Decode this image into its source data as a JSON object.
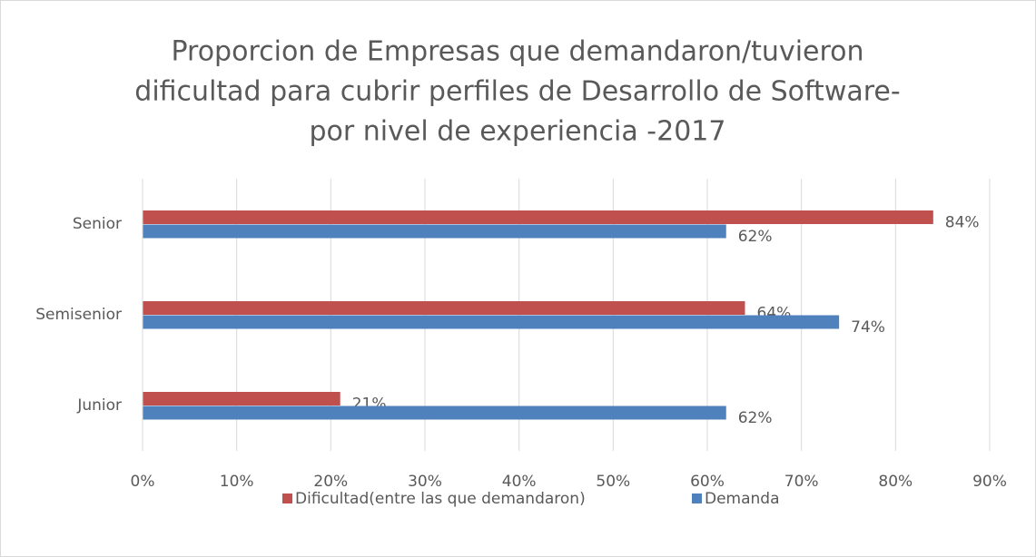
{
  "chart_data": {
    "type": "bar",
    "orientation": "horizontal",
    "title": [
      "Proporcion de Empresas que demandaron/tuvieron",
      "dificultad para cubrir perfiles de Desarrollo de Software-",
      "por nivel de experiencia -2017"
    ],
    "categories": [
      "Junior",
      "Semisenior",
      "Senior"
    ],
    "series": [
      {
        "name": "Dificultad(entre las que demandaron)",
        "color": "#c0504d",
        "values": [
          21,
          64,
          84
        ],
        "value_labels": [
          "21%",
          "64%",
          "84%"
        ]
      },
      {
        "name": "Demanda",
        "color": "#4f81bd",
        "values": [
          62,
          74,
          62
        ],
        "value_labels": [
          "62%",
          "74%",
          "62%"
        ]
      }
    ],
    "xlim": [
      0,
      90
    ],
    "xticks": [
      {
        "value": 0,
        "label": "0%"
      },
      {
        "value": 10,
        "label": "10%"
      },
      {
        "value": 20,
        "label": "20%"
      },
      {
        "value": 30,
        "label": "30%"
      },
      {
        "value": 40,
        "label": "40%"
      },
      {
        "value": 50,
        "label": "50%"
      },
      {
        "value": 60,
        "label": "60%"
      },
      {
        "value": 70,
        "label": "70%"
      },
      {
        "value": 80,
        "label": "80%"
      },
      {
        "value": 90,
        "label": "90%"
      }
    ],
    "grid": true,
    "legend": "bottom"
  }
}
